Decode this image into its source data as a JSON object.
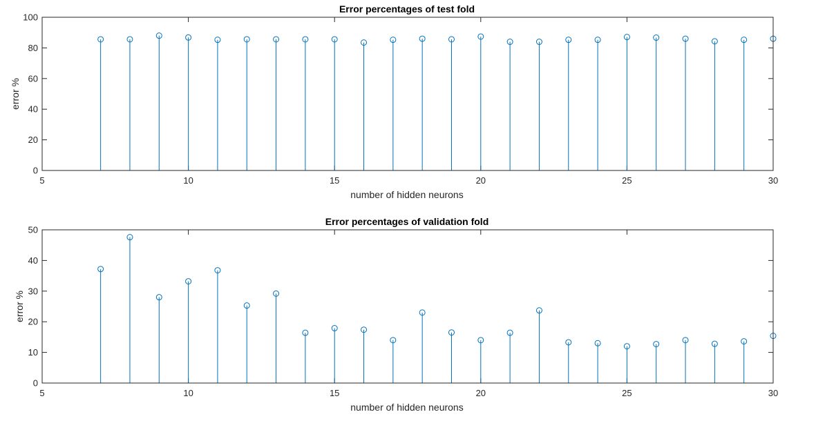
{
  "chart_data": [
    {
      "type": "stem",
      "title": "Error percentages of test fold",
      "xlabel": "number of hidden neurons",
      "ylabel": "error %",
      "xlim": [
        5,
        30
      ],
      "ylim": [
        0,
        100
      ],
      "xticks": [
        5,
        10,
        15,
        20,
        25,
        30
      ],
      "yticks": [
        0,
        20,
        40,
        60,
        80,
        100
      ],
      "color": "#0072BD",
      "grid": false,
      "series": [
        {
          "x": [
            7,
            8,
            9,
            10,
            11,
            12,
            13,
            14,
            15,
            16,
            17,
            18,
            19,
            20,
            21,
            22,
            23,
            24,
            25,
            26,
            27,
            28,
            29,
            30
          ],
          "y": [
            85.6,
            85.6,
            88.0,
            86.8,
            85.3,
            85.6,
            85.6,
            85.6,
            85.6,
            83.5,
            85.3,
            86.0,
            85.6,
            87.4,
            84.0,
            84.0,
            85.3,
            85.3,
            87.1,
            86.7,
            86.0,
            84.3,
            85.3,
            86.0
          ]
        }
      ]
    },
    {
      "type": "stem",
      "title": "Error percentages of validation fold",
      "xlabel": "number of hidden neurons",
      "ylabel": "error %",
      "xlim": [
        5,
        30
      ],
      "ylim": [
        0,
        50
      ],
      "xticks": [
        5,
        10,
        15,
        20,
        25,
        30
      ],
      "yticks": [
        0,
        10,
        20,
        30,
        40,
        50
      ],
      "color": "#0072BD",
      "grid": false,
      "series": [
        {
          "x": [
            7,
            8,
            9,
            10,
            11,
            12,
            13,
            14,
            15,
            16,
            17,
            18,
            19,
            20,
            21,
            22,
            23,
            24,
            25,
            26,
            27,
            28,
            29,
            30
          ],
          "y": [
            37.2,
            47.6,
            28.0,
            33.2,
            36.8,
            25.3,
            29.2,
            16.4,
            17.9,
            17.4,
            14.0,
            23.0,
            16.5,
            14.0,
            16.4,
            23.7,
            13.3,
            13.0,
            12.0,
            12.7,
            14.0,
            12.8,
            13.6,
            15.4
          ]
        }
      ]
    }
  ]
}
